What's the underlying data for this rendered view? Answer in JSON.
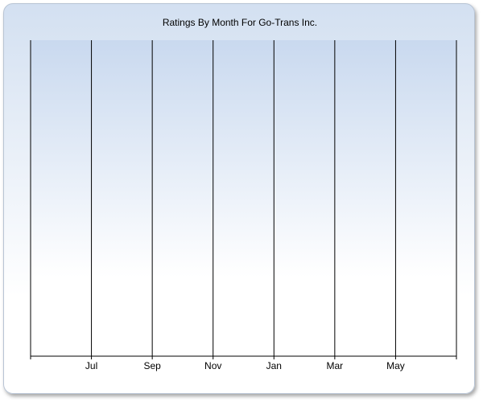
{
  "chart_data": {
    "type": "line",
    "title": "Ratings By Month For Go-Trans Inc.",
    "categories": [
      null,
      "Jul",
      "Sep",
      "Nov",
      "Jan",
      "Mar",
      "May",
      null
    ],
    "grid": true
  }
}
